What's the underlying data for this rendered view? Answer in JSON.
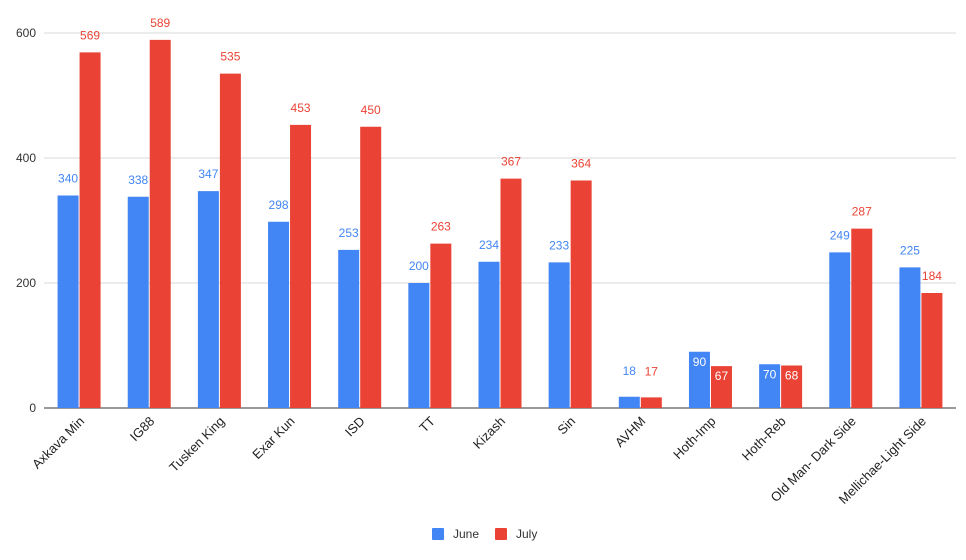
{
  "chart_data": {
    "type": "bar",
    "title": "",
    "xlabel": "",
    "ylabel": "",
    "ylim": [
      0,
      600
    ],
    "yticks": [
      0,
      200,
      400,
      600
    ],
    "grid": true,
    "legend_position": "bottom",
    "categories": [
      "Axkava Min",
      "IG88",
      "Tusken King",
      "Exar Kun",
      "ISD",
      "TT",
      "Kizash",
      "Sin",
      "AVHM",
      "Hoth-Imp",
      "Hoth-Reb",
      "Old Man- Dark Side",
      "Mellichae-Light Side"
    ],
    "series": [
      {
        "name": "June",
        "color": "#4285f4",
        "values": [
          340,
          338,
          347,
          298,
          253,
          200,
          234,
          233,
          18,
          90,
          70,
          249,
          225
        ]
      },
      {
        "name": "July",
        "color": "#ea4335",
        "values": [
          569,
          589,
          535,
          453,
          450,
          263,
          367,
          364,
          17,
          67,
          68,
          287,
          184
        ]
      }
    ]
  }
}
